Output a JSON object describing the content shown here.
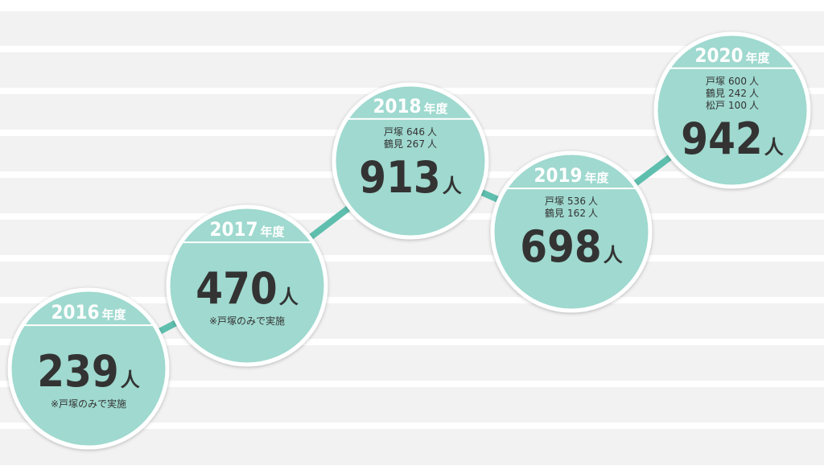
{
  "items": [
    {
      "year": "2016",
      "year_suffix": "年度",
      "total": "239",
      "unit": "人",
      "note": "※戸塚のみで実施"
    },
    {
      "year": "2017",
      "year_suffix": "年度",
      "total": "470",
      "unit": "人",
      "note": "※戸塚のみで実施"
    },
    {
      "year": "2018",
      "year_suffix": "年度",
      "breakdown": [
        {
          "place": "戸塚",
          "count": "646",
          "unit": "人"
        },
        {
          "place": "鶴見",
          "count": "267",
          "unit": "人"
        }
      ],
      "total": "913",
      "unit": "人"
    },
    {
      "year": "2019",
      "year_suffix": "年度",
      "breakdown": [
        {
          "place": "戸塚",
          "count": "536",
          "unit": "人"
        },
        {
          "place": "鶴見",
          "count": "162",
          "unit": "人"
        }
      ],
      "total": "698",
      "unit": "人"
    },
    {
      "year": "2020",
      "year_suffix": "年度",
      "breakdown": [
        {
          "place": "戸塚",
          "count": "600",
          "unit": "人"
        },
        {
          "place": "鶴見",
          "count": "242",
          "unit": "人"
        },
        {
          "place": "松戸",
          "count": "100",
          "unit": "人"
        }
      ],
      "total": "942",
      "unit": "人"
    }
  ]
}
